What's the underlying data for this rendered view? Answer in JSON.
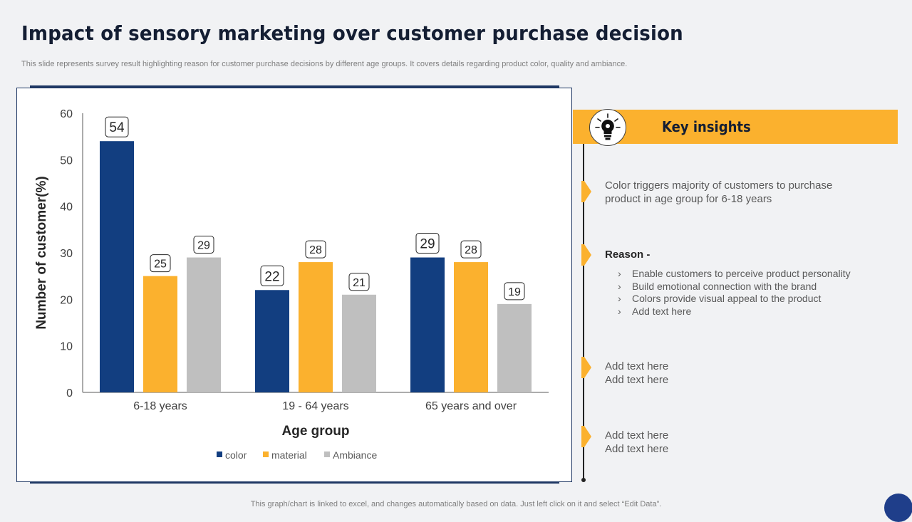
{
  "page": {
    "title": "Impact of sensory marketing over customer purchase decision",
    "subtitle": "This slide represents survey result highlighting reason for customer purchase decisions by different age groups. It covers details regarding product color, quality and ambiance.",
    "footer": "This graph/chart is linked to excel,  and changes automatically based on data. Just left click on it and select “Edit Data”."
  },
  "insights": {
    "title": "Key insights",
    "icon": "lightbulb-gear-icon",
    "point1": "Color triggers majority of customers to purchase product in age group for 6-18 years",
    "reason_label": "Reason -",
    "reasons": [
      "Enable customers to perceive product personality",
      "Build emotional connection with the brand",
      "Colors provide visual appeal to the product",
      "Add text here"
    ],
    "point3": [
      "Add text here",
      "Add text here"
    ],
    "point4": [
      "Add text here",
      "Add text here"
    ]
  },
  "colors": {
    "navy": "#123e80",
    "orange": "#fbb12e",
    "gray": "#bfbfbf",
    "accent": "#fbb12e"
  },
  "chart_data": {
    "type": "bar",
    "title": "",
    "xlabel": "Age group",
    "ylabel": "Number of customer(%)",
    "categories": [
      "6-18 years",
      "19 - 64 years",
      "65 years and over"
    ],
    "series": [
      {
        "name": "color",
        "color": "#123e80",
        "values": [
          54,
          22,
          29
        ]
      },
      {
        "name": "material",
        "color": "#fbb12e",
        "values": [
          25,
          28,
          28
        ]
      },
      {
        "name": "Ambiance",
        "color": "#bfbfbf",
        "values": [
          29,
          21,
          19
        ]
      }
    ],
    "ylim": [
      0,
      60
    ],
    "yticks": [
      0,
      10,
      20,
      30,
      40,
      50,
      60
    ],
    "legend": "bottom",
    "grid": false
  }
}
